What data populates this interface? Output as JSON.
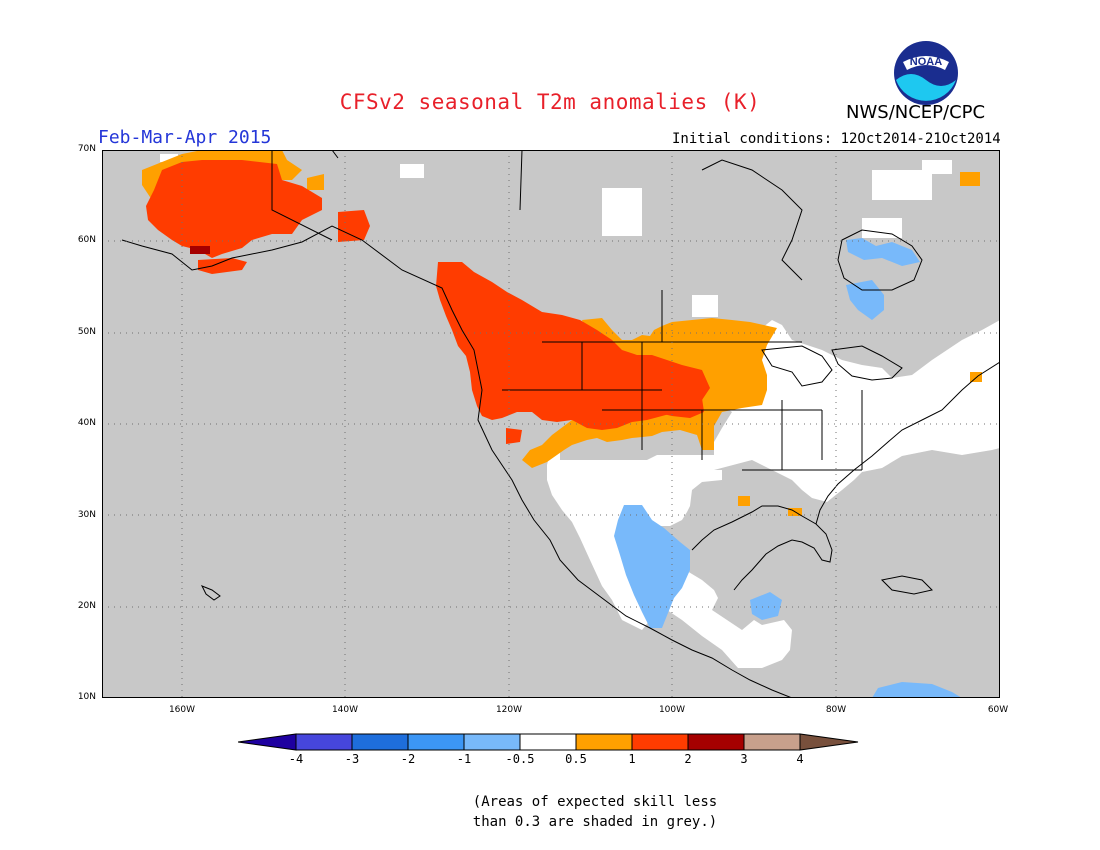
{
  "title": "CFSv2 seasonal T2m anomalies (K)",
  "season": "Feb-Mar-Apr 2015",
  "agency": "NWS/NCEP/CPC",
  "initial_conditions": "Initial conditions: 12Oct2014-21Oct2014",
  "logo_text": "NOAA",
  "map": {
    "lon_range": [
      -170,
      -60
    ],
    "lat_range": [
      10,
      70
    ],
    "lat_ticks": [
      "70N",
      "60N",
      "50N",
      "40N",
      "30N",
      "20N",
      "10N"
    ],
    "lon_ticks": [
      "160W",
      "140W",
      "120W",
      "100W",
      "80W",
      "60W"
    ],
    "grid": "dotted",
    "background_color": "#c8c8c8",
    "regions": [
      {
        "category": "1 to 2",
        "description": "Alaska",
        "color": "#ff3c00"
      },
      {
        "category": "0.5 to 1",
        "description": "northern Alaska edge",
        "color": "#ffa000"
      },
      {
        "category": "1 to 2",
        "description": "Pacific Northwest / northern Rockies / northern Plains",
        "color": "#ff3c00"
      },
      {
        "category": "0.5 to 1",
        "description": "upper Midwest / central Plains",
        "color": "#ffa000"
      },
      {
        "category": "2 to 3",
        "description": "SW Alaska spot",
        "color": "#a50000"
      },
      {
        "category": "-0.5 to 0.5",
        "description": "southwest US / Mexico / Great Lakes / eastern Canada",
        "color": "#ffffff"
      },
      {
        "category": "-1 to -0.5",
        "description": "northern Mexico / Hudson Bay / Caribbean",
        "color": "#78b9fa"
      }
    ]
  },
  "colorbar": {
    "labels": [
      "-4",
      "-3",
      "-2",
      "-1",
      "-0.5",
      "0.5",
      "1",
      "2",
      "3",
      "4"
    ],
    "colors": [
      "#1e00a0",
      "#4646dc",
      "#1e6edc",
      "#3c96f5",
      "#78b9fa",
      "#ffffff",
      "#ffa000",
      "#ff3c00",
      "#a50000",
      "#c8a08c",
      "#78503c"
    ]
  },
  "note": [
    "(Areas of expected skill less",
    "than 0.3 are shaded in grey.)"
  ]
}
